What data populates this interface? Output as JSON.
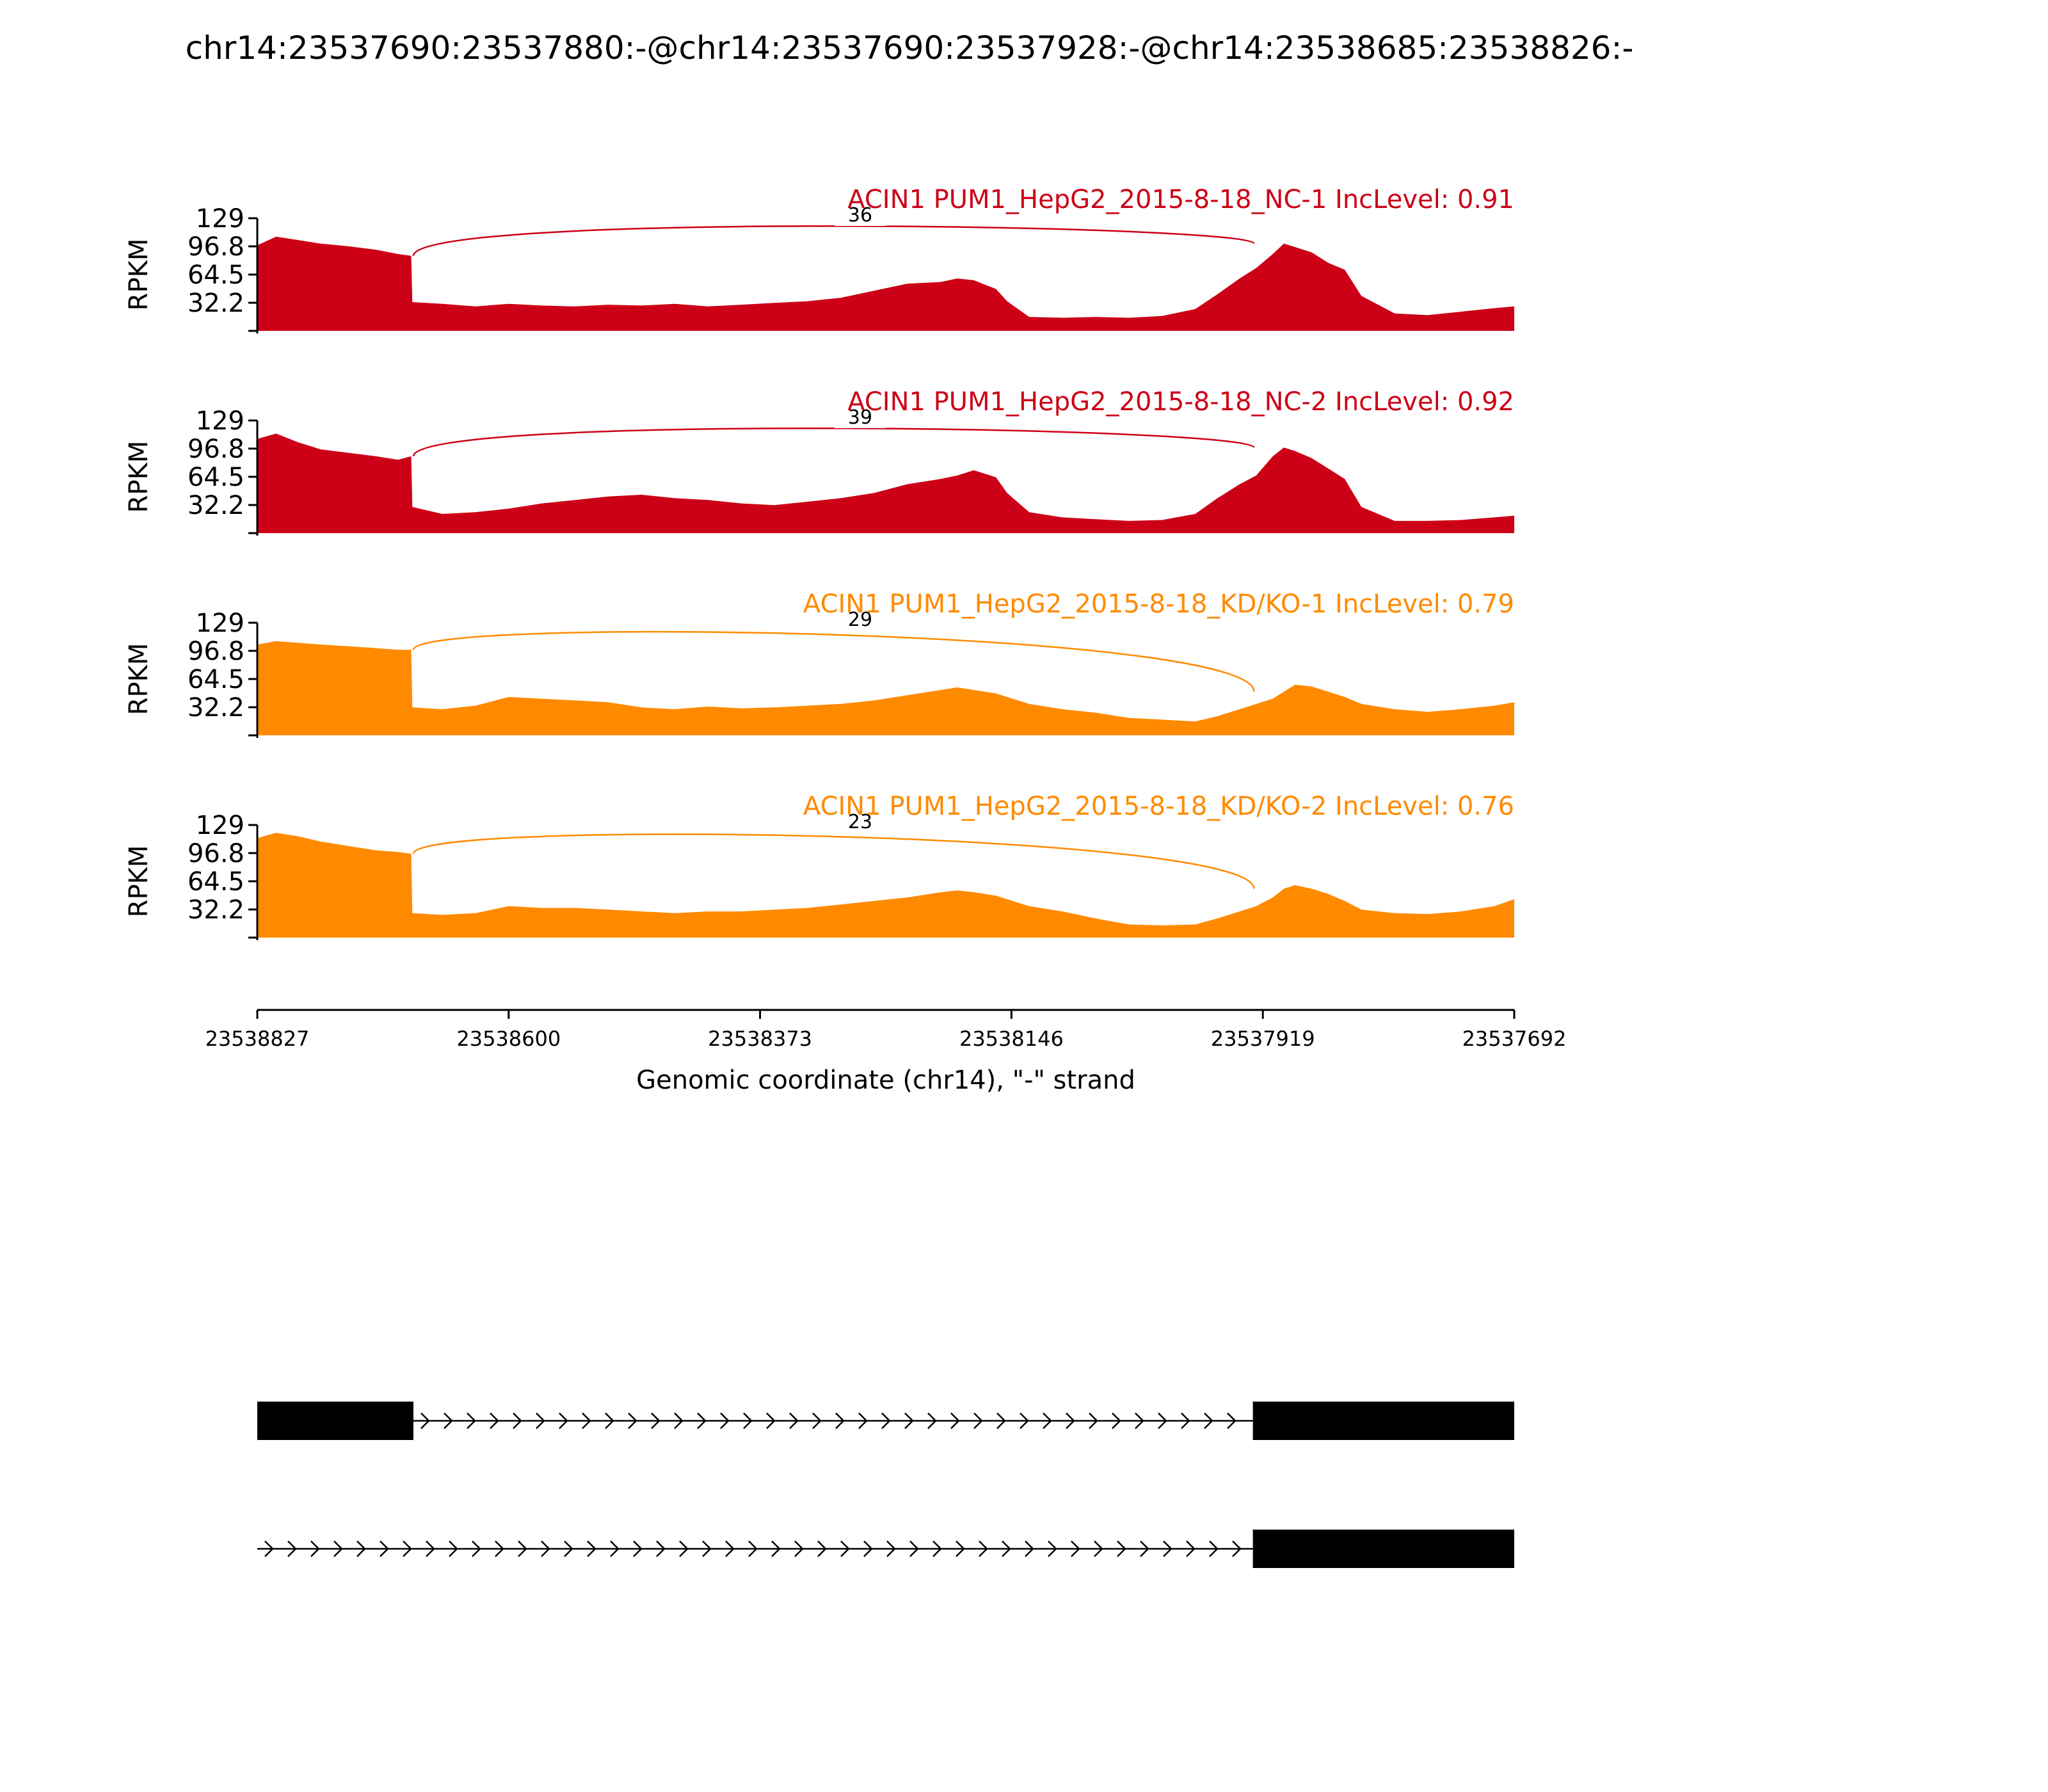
{
  "chart_data": {
    "type": "area",
    "title": "chr14:23537690:23537880:-@chr14:23537690:23537928:-@chr14:23538685:23538826:-",
    "xlabel": "Genomic coordinate (chr14), \"-\" strand",
    "ylabel": "RPKM",
    "x_reversed": true,
    "xlim": [
      23538827,
      23537692
    ],
    "ylim": [
      0,
      129
    ],
    "x_ticks": [
      "23538827",
      "23538600",
      "23538373",
      "23538146",
      "23537919",
      "23537692"
    ],
    "y_ticks": [
      "129",
      "96.8",
      "64.5",
      "32.2"
    ],
    "grid": false,
    "colors": {
      "nc": "#cc0016",
      "kd": "#ff8a00",
      "gene": "#000000",
      "text": "#000000"
    },
    "series": [
      {
        "name": "ACIN1 PUM1_HepG2_2015-8-18_NC-1 IncLevel: 0.91",
        "color": "#cc0016",
        "junction_count": "36",
        "x": [
          23538827,
          23538810,
          23538790,
          23538770,
          23538745,
          23538720,
          23538700,
          23538688,
          23538687,
          23538660,
          23538630,
          23538600,
          23538570,
          23538540,
          23538510,
          23538480,
          23538450,
          23538420,
          23538390,
          23538360,
          23538330,
          23538300,
          23538270,
          23538240,
          23538210,
          23538195,
          23538180,
          23538160,
          23538150,
          23538130,
          23538100,
          23538070,
          23538040,
          23538010,
          23537980,
          23537960,
          23537940,
          23537925,
          23537910,
          23537900,
          23537890,
          23537875,
          23537860,
          23537845,
          23537830,
          23537800,
          23537770,
          23537740,
          23537710,
          23537692
        ],
        "values": [
          98,
          108,
          104,
          100,
          97,
          93,
          88,
          86,
          33,
          31,
          28,
          31,
          29,
          28,
          30,
          29,
          31,
          28,
          30,
          32,
          34,
          38,
          46,
          54,
          56,
          60,
          58,
          48,
          34,
          16,
          15,
          16,
          15,
          17,
          25,
          42,
          60,
          72,
          88,
          100,
          96,
          90,
          78,
          70,
          40,
          20,
          18,
          22,
          26,
          28
        ]
      },
      {
        "name": "ACIN1 PUM1_HepG2_2015-8-18_NC-2 IncLevel: 0.92",
        "color": "#cc0016",
        "junction_count": "39",
        "x": [
          23538827,
          23538810,
          23538790,
          23538770,
          23538745,
          23538720,
          23538700,
          23538688,
          23538687,
          23538660,
          23538630,
          23538600,
          23538570,
          23538540,
          23538510,
          23538480,
          23538450,
          23538420,
          23538390,
          23538360,
          23538330,
          23538300,
          23538270,
          23538240,
          23538210,
          23538195,
          23538180,
          23538160,
          23538150,
          23538130,
          23538100,
          23538070,
          23538040,
          23538010,
          23537980,
          23537960,
          23537940,
          23537925,
          23537910,
          23537900,
          23537890,
          23537875,
          23537860,
          23537845,
          23537830,
          23537800,
          23537770,
          23537740,
          23537710,
          23537692
        ],
        "values": [
          108,
          114,
          104,
          96,
          92,
          88,
          84,
          88,
          30,
          22,
          24,
          28,
          34,
          38,
          42,
          44,
          40,
          38,
          34,
          32,
          36,
          40,
          46,
          56,
          62,
          66,
          72,
          64,
          46,
          24,
          18,
          16,
          14,
          15,
          22,
          40,
          56,
          66,
          88,
          98,
          94,
          86,
          74,
          62,
          30,
          14,
          14,
          15,
          18,
          20
        ]
      },
      {
        "name": "ACIN1 PUM1_HepG2_2015-8-18_KD/KO-1 IncLevel: 0.79",
        "color": "#ff8a00",
        "junction_count": "29",
        "x": [
          23538827,
          23538810,
          23538790,
          23538770,
          23538745,
          23538720,
          23538700,
          23538688,
          23538687,
          23538660,
          23538630,
          23538600,
          23538570,
          23538540,
          23538510,
          23538480,
          23538450,
          23538420,
          23538390,
          23538360,
          23538330,
          23538300,
          23538270,
          23538240,
          23538210,
          23538195,
          23538180,
          23538160,
          23538150,
          23538130,
          23538100,
          23538070,
          23538040,
          23538010,
          23537980,
          23537960,
          23537940,
          23537925,
          23537910,
          23537900,
          23537890,
          23537875,
          23537860,
          23537845,
          23537830,
          23537800,
          23537770,
          23537740,
          23537710,
          23537692
        ],
        "values": [
          104,
          108,
          106,
          104,
          102,
          100,
          98,
          98,
          32,
          30,
          34,
          44,
          42,
          40,
          38,
          32,
          30,
          33,
          31,
          32,
          34,
          36,
          40,
          46,
          52,
          55,
          52,
          48,
          44,
          36,
          30,
          26,
          20,
          18,
          16,
          22,
          30,
          36,
          42,
          50,
          58,
          56,
          50,
          44,
          36,
          30,
          27,
          30,
          34,
          38
        ]
      },
      {
        "name": "ACIN1 PUM1_HepG2_2015-8-18_KD/KO-2 IncLevel: 0.76",
        "color": "#ff8a00",
        "junction_count": "23",
        "x": [
          23538827,
          23538810,
          23538790,
          23538770,
          23538745,
          23538720,
          23538700,
          23538688,
          23538687,
          23538660,
          23538630,
          23538600,
          23538570,
          23538540,
          23538510,
          23538480,
          23538450,
          23538420,
          23538390,
          23538360,
          23538330,
          23538300,
          23538270,
          23538240,
          23538210,
          23538195,
          23538180,
          23538160,
          23538150,
          23538130,
          23538100,
          23538070,
          23538040,
          23538010,
          23537980,
          23537960,
          23537940,
          23537925,
          23537910,
          23537900,
          23537890,
          23537875,
          23537860,
          23537845,
          23537830,
          23537800,
          23537770,
          23537740,
          23537710,
          23537692
        ],
        "values": [
          114,
          120,
          116,
          110,
          105,
          100,
          98,
          96,
          28,
          26,
          28,
          36,
          34,
          34,
          32,
          30,
          28,
          30,
          30,
          32,
          34,
          38,
          42,
          46,
          52,
          54,
          52,
          48,
          44,
          36,
          30,
          22,
          15,
          14,
          15,
          22,
          30,
          36,
          46,
          56,
          60,
          56,
          50,
          42,
          32,
          28,
          27,
          30,
          36,
          44
        ]
      }
    ],
    "junction": {
      "start": 23538686,
      "end": 23537927
    },
    "gene_models": [
      {
        "exons": [
          [
            23538827,
            23538686
          ],
          [
            23537928,
            23537692
          ]
        ],
        "intron": [
          23538686,
          23537928
        ]
      },
      {
        "exons": [
          [
            23537928,
            23537692
          ]
        ],
        "intron": [
          23538827,
          23537928
        ]
      }
    ]
  }
}
